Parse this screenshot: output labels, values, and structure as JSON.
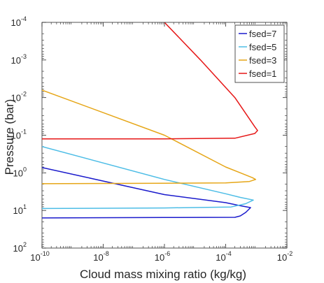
{
  "chart_data": {
    "type": "line",
    "title": "",
    "xlabel": "Cloud mass mixing ratio (kg/kg)",
    "ylabel": "Pressure (bar)",
    "xscale": "log",
    "yscale": "log",
    "y_reversed": true,
    "xlim": [
      1e-10,
      0.01
    ],
    "ylim": [
      0.0001,
      100
    ],
    "x_ticks": [
      {
        "value": 1e-10,
        "base": "10",
        "exp": "-10"
      },
      {
        "value": 1e-08,
        "base": "10",
        "exp": "-8"
      },
      {
        "value": 1e-06,
        "base": "10",
        "exp": "-6"
      },
      {
        "value": 0.0001,
        "base": "10",
        "exp": "-4"
      },
      {
        "value": 0.01,
        "base": "10",
        "exp": "-2"
      }
    ],
    "y_ticks": [
      {
        "value": 0.0001,
        "base": "10",
        "exp": "-4"
      },
      {
        "value": 0.001,
        "base": "10",
        "exp": "-3"
      },
      {
        "value": 0.01,
        "base": "10",
        "exp": "-2"
      },
      {
        "value": 0.1,
        "base": "10",
        "exp": "-1"
      },
      {
        "value": 1,
        "base": "10",
        "exp": "0"
      },
      {
        "value": 10,
        "base": "10",
        "exp": "1"
      },
      {
        "value": 100,
        "base": "10",
        "exp": "2"
      }
    ],
    "grid": false,
    "legend_position": "top-right",
    "series": [
      {
        "name": "fsed=7",
        "color": "#1a1acc",
        "points": [
          [
            1e-10,
            0.72
          ],
          [
            1e-06,
            3.8
          ],
          [
            0.0001,
            6.2
          ],
          [
            0.0003,
            7.5
          ],
          [
            0.00065,
            8.4
          ],
          [
            0.00045,
            11.3
          ],
          [
            0.0003,
            14
          ],
          [
            0.0002,
            15.2
          ],
          [
            1e-06,
            15.4
          ],
          [
            1e-10,
            15.8
          ]
        ]
      },
      {
        "name": "fsed=5",
        "color": "#4dbde6",
        "points": [
          [
            1e-10,
            0.2
          ],
          [
            1e-06,
            1.5
          ],
          [
            0.0001,
            3.6
          ],
          [
            0.0003,
            4.5
          ],
          [
            0.0008,
            5.3
          ],
          [
            0.00045,
            6.6
          ],
          [
            0.00015,
            8.1
          ],
          [
            1e-06,
            8.6
          ],
          [
            1e-10,
            8.9
          ]
        ]
      },
      {
        "name": "fsed=3",
        "color": "#e6a617",
        "points": [
          [
            1e-10,
            0.0063
          ],
          [
            1e-06,
            0.1
          ],
          [
            0.0001,
            0.7
          ],
          [
            0.0003,
            1.0
          ],
          [
            0.00075,
            1.35
          ],
          [
            0.00095,
            1.5
          ],
          [
            0.0006,
            1.7
          ],
          [
            0.0001,
            1.85
          ],
          [
            1e-06,
            1.9
          ],
          [
            1e-10,
            1.95
          ]
        ]
      },
      {
        "name": "fsed=1",
        "color": "#e61717",
        "points": [
          [
            1e-06,
            0.0001
          ],
          [
            1.5e-05,
            0.001
          ],
          [
            0.0002,
            0.01
          ],
          [
            0.0009,
            0.06
          ],
          [
            0.0011,
            0.075
          ],
          [
            0.0009,
            0.09
          ],
          [
            0.0002,
            0.12
          ],
          [
            1e-06,
            0.125
          ],
          [
            1e-10,
            0.125
          ]
        ]
      }
    ]
  }
}
